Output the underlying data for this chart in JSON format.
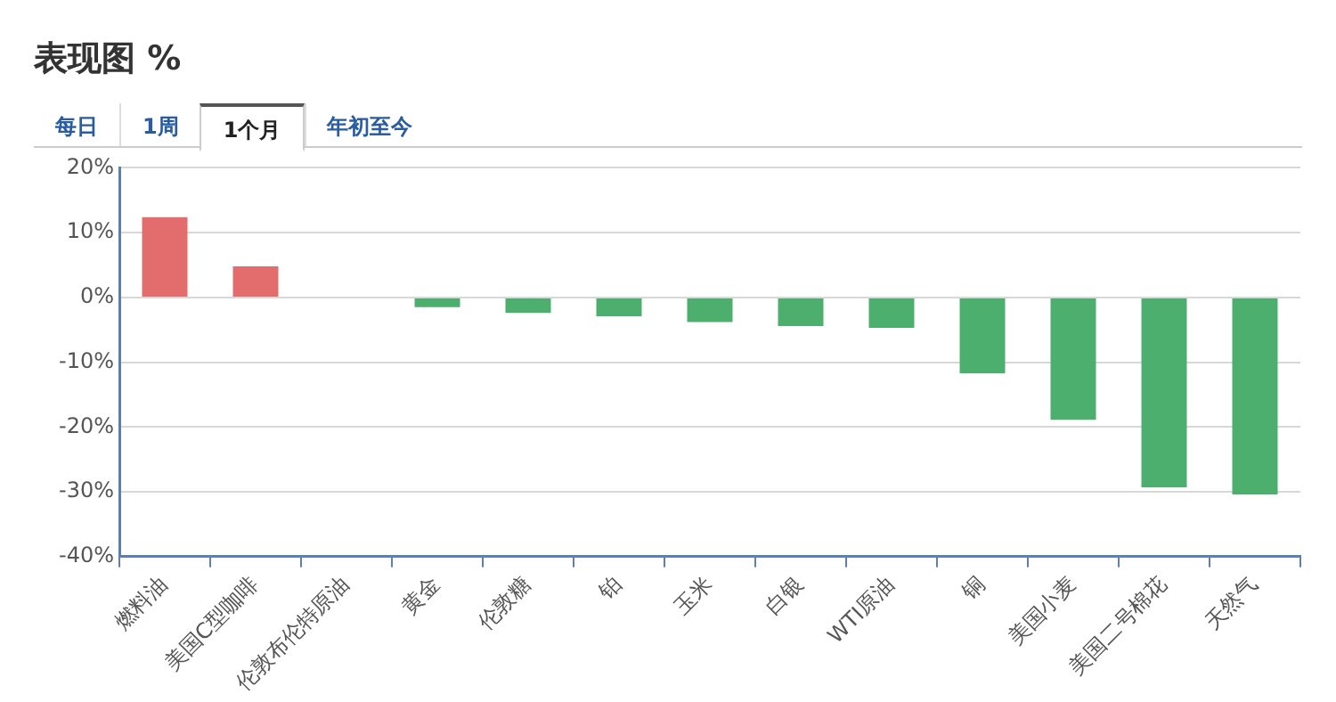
{
  "chart_data": {
    "type": "bar",
    "title": "表现图 %",
    "annotations": [
      "每日",
      "1周",
      "1个月",
      "年初至今"
    ],
    "categories": [
      "燃料油",
      "美国C型咖啡",
      "伦敦布伦特原油",
      "黄金",
      "伦敦糖",
      "铂",
      "玉米",
      "白银",
      "WTI原油",
      "铜",
      "美国小麦",
      "美国二号棉花",
      "天然气"
    ],
    "values": [
      12.4,
      4.8,
      0,
      -1.5,
      -2.4,
      -2.9,
      -3.8,
      -4.4,
      -4.7,
      -11.7,
      -18.9,
      -29.3,
      -30.4
    ],
    "colors": [
      "#e36c6c",
      "#e36c6c",
      "#4caf6e",
      "#4caf6e",
      "#4caf6e",
      "#4caf6e",
      "#4caf6e",
      "#4caf6e",
      "#4caf6e",
      "#4caf6e",
      "#4caf6e",
      "#4caf6e",
      "#4caf6e"
    ],
    "ylim": [
      -40,
      20
    ],
    "yticks": [
      {
        "value": 20,
        "label": "20%"
      },
      {
        "value": 10,
        "label": "10%"
      },
      {
        "value": 0,
        "label": "0%"
      },
      {
        "value": -10,
        "label": "-10%"
      },
      {
        "value": -20,
        "label": "-20%"
      },
      {
        "value": -30,
        "label": "-30%"
      },
      {
        "value": -40,
        "label": "-40%"
      }
    ],
    "grid": "y",
    "legend": false
  }
}
